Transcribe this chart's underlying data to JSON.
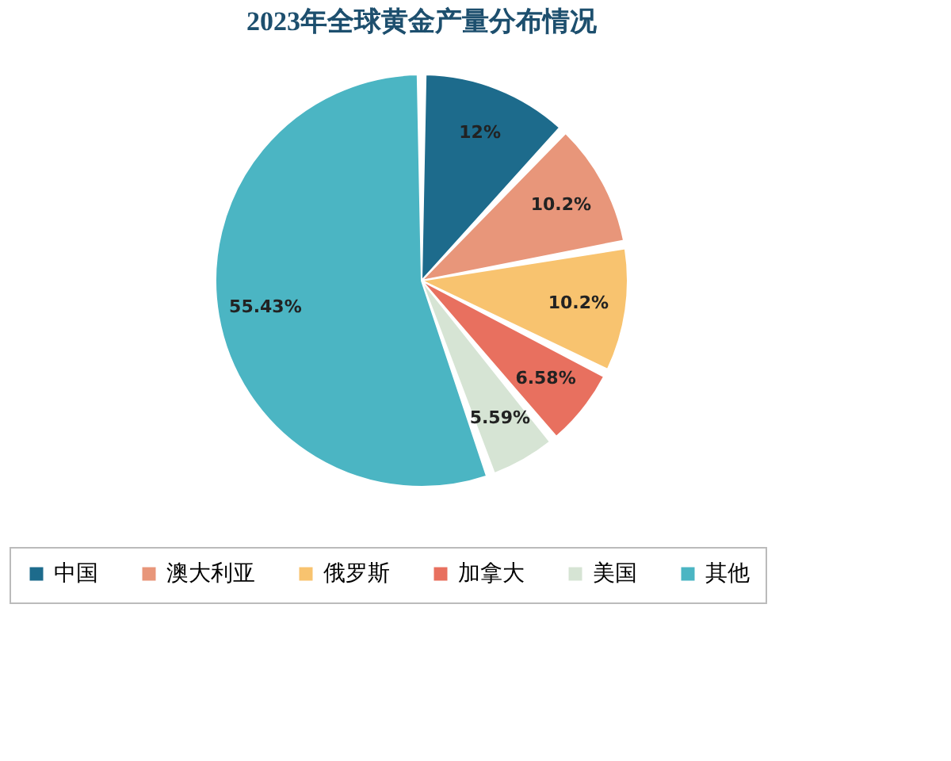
{
  "chart_data": {
    "type": "pie",
    "title": "2023年全球黄金产量分布情况",
    "categories": [
      "中国",
      "澳大利亚",
      "俄罗斯",
      "加拿大",
      "美国",
      "其他"
    ],
    "values": [
      12,
      10.2,
      10.2,
      6.58,
      5.59,
      55.43
    ],
    "colors": [
      "#1d6b8c",
      "#e8967a",
      "#f8c36f",
      "#e8705f",
      "#d6e4d4",
      "#4bb5c3"
    ],
    "value_labels": [
      "12%",
      "10.2%",
      "10.2%",
      "6.58%",
      "5.59%",
      "55.43%"
    ],
    "legend": "bottom"
  }
}
